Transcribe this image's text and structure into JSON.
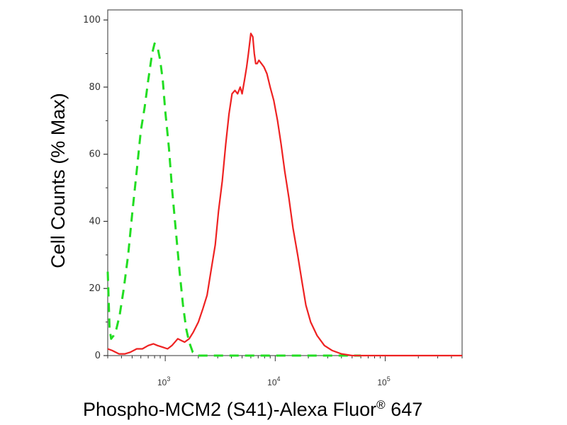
{
  "chart_data": {
    "type": "histogram",
    "xlabel": "Phospho-MCM2 (S41)-Alexa Fluor",
    "xlabel_superscript": "®",
    "xlabel_suffix": " 647",
    "ylabel": "Cell Counts (% Max)",
    "x_scale": "log",
    "xlim": [
      300,
      500000
    ],
    "ylim": [
      0,
      103
    ],
    "y_ticks": [
      {
        "value": 0,
        "label": "0"
      },
      {
        "value": 20,
        "label": "20"
      },
      {
        "value": 40,
        "label": "40"
      },
      {
        "value": 60,
        "label": "60"
      },
      {
        "value": 80,
        "label": "80"
      },
      {
        "value": 100,
        "label": "100"
      }
    ],
    "x_major_ticks": [
      {
        "value": 1000,
        "base": "10",
        "exp": "3"
      },
      {
        "value": 10000,
        "base": "10",
        "exp": "4"
      },
      {
        "value": 100000,
        "base": "10",
        "exp": "5"
      }
    ],
    "grid": false,
    "legend": "none",
    "series": [
      {
        "color": "#22dd22",
        "line_style": "dashed",
        "points": [
          [
            300,
            25
          ],
          [
            305,
            18
          ],
          [
            312,
            8
          ],
          [
            322,
            5
          ],
          [
            340,
            6
          ],
          [
            360,
            8
          ],
          [
            385,
            12
          ],
          [
            420,
            20
          ],
          [
            460,
            30
          ],
          [
            500,
            42
          ],
          [
            550,
            55
          ],
          [
            600,
            67
          ],
          [
            650,
            74
          ],
          [
            700,
            82
          ],
          [
            760,
            90
          ],
          [
            800,
            93
          ],
          [
            850,
            92
          ],
          [
            900,
            88
          ],
          [
            950,
            82
          ],
          [
            1000,
            73
          ],
          [
            1080,
            62
          ],
          [
            1150,
            50
          ],
          [
            1250,
            37
          ],
          [
            1350,
            25
          ],
          [
            1450,
            15
          ],
          [
            1550,
            8
          ],
          [
            1650,
            4
          ],
          [
            1780,
            1
          ],
          [
            1950,
            0
          ],
          [
            2500,
            0
          ],
          [
            5000,
            0
          ],
          [
            10000,
            0
          ],
          [
            20000,
            0
          ],
          [
            40000,
            0
          ],
          [
            60000,
            0
          ]
        ]
      },
      {
        "color": "#ee2222",
        "line_style": "solid",
        "points": [
          [
            300,
            2
          ],
          [
            330,
            1.5
          ],
          [
            380,
            0.5
          ],
          [
            430,
            0.5
          ],
          [
            480,
            1
          ],
          [
            550,
            2
          ],
          [
            620,
            2
          ],
          [
            700,
            3
          ],
          [
            780,
            3.5
          ],
          [
            850,
            3
          ],
          [
            950,
            2.5
          ],
          [
            1050,
            2
          ],
          [
            1150,
            3
          ],
          [
            1300,
            5
          ],
          [
            1500,
            4
          ],
          [
            1650,
            5
          ],
          [
            1800,
            7
          ],
          [
            2000,
            10
          ],
          [
            2200,
            14
          ],
          [
            2400,
            18
          ],
          [
            2600,
            25
          ],
          [
            2850,
            33
          ],
          [
            3050,
            43
          ],
          [
            3300,
            52
          ],
          [
            3550,
            63
          ],
          [
            3800,
            72
          ],
          [
            4050,
            78
          ],
          [
            4300,
            79
          ],
          [
            4550,
            78
          ],
          [
            4800,
            80
          ],
          [
            5000,
            78
          ],
          [
            5250,
            82
          ],
          [
            5500,
            86
          ],
          [
            5700,
            90
          ],
          [
            5850,
            93
          ],
          [
            6000,
            96
          ],
          [
            6250,
            95
          ],
          [
            6450,
            90
          ],
          [
            6650,
            87
          ],
          [
            6850,
            87
          ],
          [
            7100,
            88
          ],
          [
            7500,
            87
          ],
          [
            7900,
            86
          ],
          [
            8400,
            84
          ],
          [
            9000,
            80
          ],
          [
            9700,
            76
          ],
          [
            10500,
            70
          ],
          [
            11300,
            63
          ],
          [
            12200,
            55
          ],
          [
            13300,
            47
          ],
          [
            14500,
            38
          ],
          [
            16000,
            30
          ],
          [
            17500,
            22
          ],
          [
            19000,
            15
          ],
          [
            21000,
            10
          ],
          [
            24000,
            6
          ],
          [
            28000,
            3
          ],
          [
            33000,
            1.5
          ],
          [
            40000,
            0.5
          ],
          [
            50000,
            0
          ],
          [
            70000,
            0
          ],
          [
            150000,
            0
          ],
          [
            500000,
            0
          ]
        ]
      }
    ]
  }
}
